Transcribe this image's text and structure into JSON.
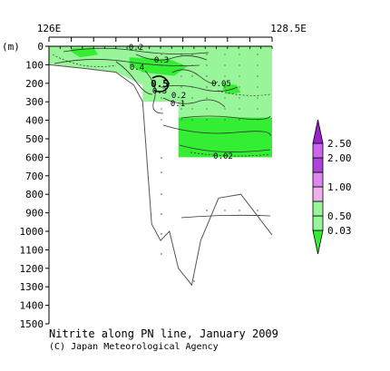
{
  "chart_data": {
    "type": "contour-section",
    "title": "Nitrite along PN line, January 2009",
    "credit": "(C) Japan Meteorological Agency",
    "ylabel": "(m)",
    "x_top_labels": [
      "126E",
      "128.5E"
    ],
    "xlim": [
      126,
      128.5
    ],
    "ylim": [
      1500,
      0
    ],
    "y_ticks": [
      0,
      100,
      200,
      300,
      400,
      500,
      600,
      700,
      800,
      900,
      1000,
      1100,
      1200,
      1300,
      1400,
      1500
    ],
    "grid": false,
    "colorbar": {
      "levels": [
        "0.03",
        "0.50",
        "1.00",
        "2.00",
        "2.50"
      ],
      "colors": [
        "#33ee33",
        "#99f599",
        "#eeb0ee",
        "#dd88ee",
        "#aa44dd",
        "#cc66ee",
        "#9922cc"
      ],
      "placement": "right"
    },
    "contour_labels": [
      "0.2",
      "0.3",
      "0.4",
      "0.5",
      "0.3",
      "0.2",
      "0.1",
      "0.05",
      "0.02"
    ],
    "bottom_profile": {
      "x": [
        126.0,
        126.4,
        126.75,
        126.95,
        127.05,
        127.15,
        127.25,
        127.35,
        127.45,
        127.6,
        127.7,
        127.9,
        128.15,
        128.5
      ],
      "depth": [
        100,
        120,
        140,
        210,
        300,
        960,
        1050,
        1000,
        1200,
        1290,
        1050,
        820,
        800,
        1020
      ]
    },
    "fill_regions": [
      {
        "name": "nitrite-upper-layer",
        "color": "#99f599",
        "x": [
          126.0,
          128.5,
          128.5,
          127.45,
          127.45,
          127.05,
          127.05,
          126.75,
          126.4,
          126.0
        ],
        "depth": [
          0,
          0,
          400,
          400,
          300,
          300,
          210,
          140,
          120,
          100
        ]
      },
      {
        "name": "nitrite-high-core",
        "color": "#33ee33",
        "x": [
          127.45,
          128.5,
          128.5,
          127.45
        ],
        "depth": [
          385,
          385,
          600,
          600
        ]
      },
      {
        "name": "nitrite-patch-west",
        "color": "#33ee33",
        "x": [
          126.25,
          126.5,
          126.55,
          126.35,
          126.25
        ],
        "depth": [
          10,
          8,
          45,
          60,
          30
        ]
      },
      {
        "name": "nitrite-patch-center",
        "color": "#33ee33",
        "x": [
          126.9,
          127.35,
          127.55,
          127.4,
          127.05,
          126.9
        ],
        "depth": [
          60,
          70,
          110,
          160,
          140,
          100
        ]
      },
      {
        "name": "nitrite-patch-east",
        "color": "#33ee33",
        "x": [
          127.95,
          128.1,
          128.15,
          128.0,
          127.95
        ],
        "depth": [
          200,
          210,
          250,
          260,
          230
        ]
      }
    ]
  }
}
